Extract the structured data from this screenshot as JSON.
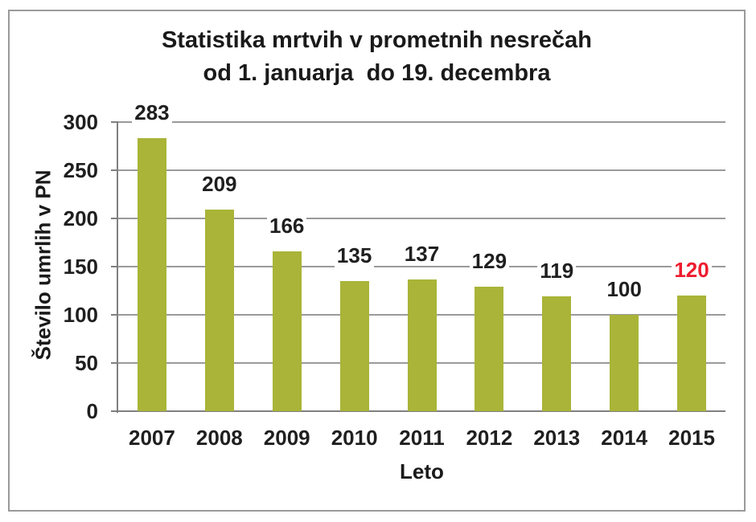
{
  "chart_data": {
    "type": "bar",
    "title": "Statistika mrtvih v prometnih nesrečah",
    "subtitle": "od 1. januarja  do 19. decembra",
    "xlabel": "Leto",
    "ylabel": "Število umrlih v PN",
    "categories": [
      "2007",
      "2008",
      "2009",
      "2010",
      "2011",
      "2012",
      "2013",
      "2014",
      "2015"
    ],
    "values": [
      283,
      209,
      166,
      135,
      137,
      129,
      119,
      100,
      120
    ],
    "highlight_index": 8,
    "ylim": [
      0,
      300
    ],
    "yticks": [
      0,
      50,
      100,
      150,
      200,
      250,
      300
    ],
    "grid": true,
    "legend": null,
    "colors": {
      "bar": "#a9b438",
      "value_label": "#1f1f1f",
      "highlight_value_label": "#ee1c2e",
      "gridline": "#9a9a9a",
      "axis": "#808080",
      "frame_border": "#9a9a9a",
      "text": "#1a1a1a",
      "background": "#ffffff"
    }
  }
}
